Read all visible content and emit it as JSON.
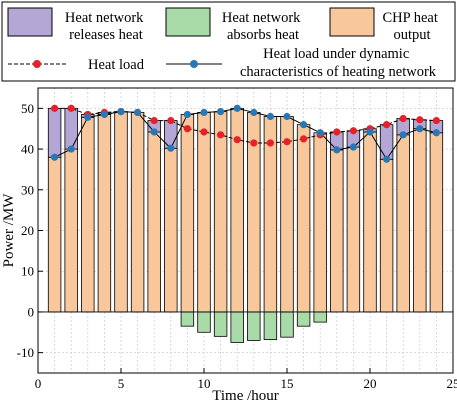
{
  "chart_data": {
    "type": "bar",
    "xlabel": "Time /hour",
    "ylabel": "Power /MW",
    "xlim": [
      0,
      25
    ],
    "ylim": [
      -15,
      55
    ],
    "xticks": [
      0,
      5,
      10,
      15,
      20,
      25
    ],
    "yticks": [
      -10,
      0,
      10,
      20,
      30,
      40,
      50
    ],
    "x": [
      1,
      2,
      3,
      4,
      5,
      6,
      7,
      8,
      9,
      10,
      11,
      12,
      13,
      14,
      15,
      16,
      17,
      18,
      19,
      20,
      21,
      22,
      23,
      24
    ],
    "series": [
      {
        "name": "CHP heat output",
        "kind": "bar",
        "color": "#f8c89c",
        "values": [
          50,
          50,
          48.5,
          49,
          49.2,
          49,
          47,
          47,
          48.5,
          49,
          49.2,
          50,
          49,
          48,
          48,
          46,
          44,
          44.2,
          44.5,
          45,
          46,
          47.5,
          47.2,
          47
        ]
      },
      {
        "name": "Heat network releases heat",
        "kind": "bar-overlay",
        "color": "#b4a7d6",
        "base": [
          38,
          40,
          47.8,
          48.5,
          49.2,
          49,
          44.2,
          40.2,
          48.5,
          49,
          49.2,
          50,
          49,
          48,
          48,
          46,
          44,
          39.8,
          40.5,
          44.2,
          37.5,
          43.5,
          45,
          44
        ],
        "top": [
          50,
          50,
          48.5,
          49,
          49.2,
          49,
          47,
          47,
          48.5,
          49,
          49.2,
          50,
          49,
          48,
          48,
          46,
          44,
          44.2,
          44.5,
          45,
          46,
          47.5,
          47.2,
          47
        ]
      },
      {
        "name": "Heat network absorbs heat",
        "kind": "bar",
        "color": "#a9dba9",
        "values": [
          0,
          0,
          0,
          0,
          0,
          0,
          0,
          0,
          -3.5,
          -5,
          -6,
          -7.5,
          -7,
          -6.8,
          -6.2,
          -3.5,
          -2.5,
          0,
          0,
          0,
          0,
          0,
          0,
          0
        ]
      },
      {
        "name": "Heat load",
        "kind": "line",
        "color": "#e8202a",
        "values": [
          50,
          50,
          48.5,
          49,
          49.2,
          49,
          47,
          47,
          45,
          44.2,
          43.5,
          42.3,
          41.5,
          41.5,
          41.8,
          42.5,
          43.5,
          44.2,
          44.5,
          45,
          46,
          47.5,
          47.2,
          47
        ]
      },
      {
        "name": "Heat load under dynamic characteristics of heating network",
        "kind": "line",
        "color": "#2878b8",
        "values": [
          38,
          40,
          47.8,
          48.5,
          49.2,
          49,
          44.2,
          40.2,
          48.5,
          49,
          49.2,
          50,
          49,
          48,
          48,
          46,
          44,
          39.8,
          40.5,
          44.2,
          37.5,
          43.5,
          45,
          44
        ]
      }
    ]
  },
  "legend": {
    "releases": "Heat network\nreleases heat",
    "absorbs": "Heat network\nabsorbs heat",
    "chp": "CHP heat\noutput",
    "load": "Heat load",
    "dynamic": "Heat load under dynamic\ncharacteristics of heating network"
  }
}
